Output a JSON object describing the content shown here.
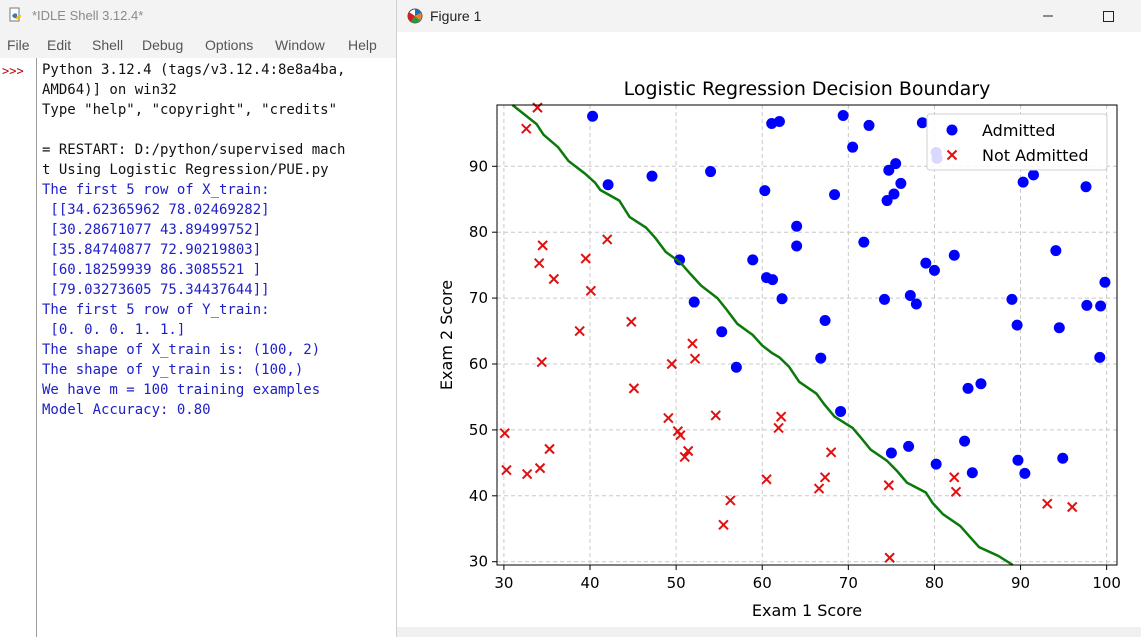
{
  "idle": {
    "title": "*IDLE Shell 3.12.4*",
    "menu": [
      "File",
      "Edit",
      "Shell",
      "Debug",
      "Options",
      "Window",
      "Help"
    ],
    "prompt": ">>>",
    "lines": [
      {
        "text": "Python 3.12.4 (tags/v3.12.4:8e8a4ba,",
        "color": "black"
      },
      {
        "text": "AMD64)] on win32",
        "color": "black"
      },
      {
        "text": "Type \"help\", \"copyright\", \"credits\"",
        "color": "black"
      },
      {
        "text": "",
        "color": "black"
      },
      {
        "text": "= RESTART: D:/python/supervised mach",
        "color": "black"
      },
      {
        "text": "t Using Logistic Regression/PUE.py",
        "color": "black"
      },
      {
        "text": "The first 5 row of X_train:",
        "color": "blue"
      },
      {
        "text": " [[34.62365962 78.02469282]",
        "color": "blue"
      },
      {
        "text": " [30.28671077 43.89499752]",
        "color": "blue"
      },
      {
        "text": " [35.84740877 72.90219803]",
        "color": "blue"
      },
      {
        "text": " [60.18259939 86.3085521 ]",
        "color": "blue"
      },
      {
        "text": " [79.03273605 75.34437644]]",
        "color": "blue"
      },
      {
        "text": "The first 5 row of Y_train:",
        "color": "blue"
      },
      {
        "text": " [0. 0. 0. 1. 1.]",
        "color": "blue"
      },
      {
        "text": "The shape of X_train is: (100, 2)",
        "color": "blue"
      },
      {
        "text": "The shape of y_train is: (100,)",
        "color": "blue"
      },
      {
        "text": "We have m = 100 training examples",
        "color": "blue"
      },
      {
        "text": "Model Accuracy: 0.80",
        "color": "blue"
      }
    ]
  },
  "figure": {
    "title": "Figure 1"
  },
  "colors": {
    "admitted": "#0000ff",
    "not_admitted": "#e01010",
    "boundary": "#0a7a0a"
  },
  "chart_data": {
    "type": "scatter",
    "title": "Logistic Regression Decision Boundary",
    "xlabel": "Exam 1 Score",
    "ylabel": "Exam 2 Score",
    "xlim": [
      29.2,
      101.2
    ],
    "ylim": [
      29.5,
      99.3
    ],
    "xticks": [
      30,
      40,
      50,
      60,
      70,
      80,
      90,
      100
    ],
    "yticks": [
      30,
      40,
      50,
      60,
      70,
      80,
      90
    ],
    "grid": true,
    "legend_position": "top-right",
    "series": [
      {
        "name": "Admitted",
        "marker": "circle",
        "points": [
          [
            40.3,
            97.6
          ],
          [
            42.1,
            87.2
          ],
          [
            47.2,
            88.5
          ],
          [
            50.4,
            75.8
          ],
          [
            52.1,
            69.4
          ],
          [
            54.0,
            89.2
          ],
          [
            55.3,
            64.9
          ],
          [
            57.0,
            59.5
          ],
          [
            58.9,
            75.8
          ],
          [
            60.3,
            86.3
          ],
          [
            60.5,
            73.1
          ],
          [
            61.1,
            96.5
          ],
          [
            61.2,
            72.8
          ],
          [
            62.0,
            96.8
          ],
          [
            62.3,
            69.9
          ],
          [
            64.0,
            80.9
          ],
          [
            64.0,
            77.9
          ],
          [
            66.8,
            60.9
          ],
          [
            67.3,
            66.6
          ],
          [
            68.4,
            85.7
          ],
          [
            69.1,
            52.8
          ],
          [
            69.4,
            97.7
          ],
          [
            70.5,
            92.9
          ],
          [
            71.8,
            78.5
          ],
          [
            72.4,
            96.2
          ],
          [
            74.2,
            69.8
          ],
          [
            74.5,
            84.8
          ],
          [
            74.7,
            89.4
          ],
          [
            75.0,
            46.5
          ],
          [
            75.3,
            85.8
          ],
          [
            75.5,
            90.4
          ],
          [
            76.1,
            87.4
          ],
          [
            77.0,
            47.5
          ],
          [
            77.2,
            70.4
          ],
          [
            77.9,
            69.1
          ],
          [
            78.6,
            96.6
          ],
          [
            79.0,
            75.3
          ],
          [
            80.0,
            74.2
          ],
          [
            80.2,
            92.1
          ],
          [
            80.3,
            91.2
          ],
          [
            80.2,
            44.8
          ],
          [
            82.3,
            76.5
          ],
          [
            83.5,
            48.3
          ],
          [
            83.9,
            56.3
          ],
          [
            84.4,
            43.5
          ],
          [
            85.4,
            57.0
          ],
          [
            89.0,
            69.8
          ],
          [
            89.6,
            65.9
          ],
          [
            89.7,
            45.4
          ],
          [
            90.3,
            87.6
          ],
          [
            90.5,
            43.4
          ],
          [
            91.5,
            88.7
          ],
          [
            94.1,
            77.2
          ],
          [
            94.5,
            65.5
          ],
          [
            94.9,
            45.7
          ],
          [
            97.6,
            86.9
          ],
          [
            97.7,
            68.9
          ],
          [
            99.2,
            61.0
          ],
          [
            99.3,
            68.8
          ],
          [
            99.8,
            72.4
          ]
        ]
      },
      {
        "name": "Not Admitted",
        "marker": "x",
        "points": [
          [
            30.1,
            49.5
          ],
          [
            30.3,
            43.9
          ],
          [
            32.6,
            95.7
          ],
          [
            32.7,
            43.3
          ],
          [
            33.9,
            98.9
          ],
          [
            34.1,
            75.3
          ],
          [
            34.2,
            44.2
          ],
          [
            34.4,
            60.3
          ],
          [
            34.5,
            78.0
          ],
          [
            35.3,
            47.1
          ],
          [
            35.8,
            72.9
          ],
          [
            38.8,
            65.0
          ],
          [
            39.5,
            76.0
          ],
          [
            40.1,
            71.1
          ],
          [
            42.0,
            78.9
          ],
          [
            44.8,
            66.4
          ],
          [
            45.1,
            56.3
          ],
          [
            49.1,
            51.8
          ],
          [
            49.5,
            60.0
          ],
          [
            50.2,
            49.8
          ],
          [
            50.5,
            49.2
          ],
          [
            51.0,
            45.9
          ],
          [
            51.4,
            46.8
          ],
          [
            51.9,
            63.1
          ],
          [
            52.2,
            60.8
          ],
          [
            54.6,
            52.2
          ],
          [
            55.5,
            35.6
          ],
          [
            56.3,
            39.3
          ],
          [
            60.5,
            42.5
          ],
          [
            61.9,
            50.3
          ],
          [
            62.2,
            52.0
          ],
          [
            66.6,
            41.1
          ],
          [
            67.3,
            42.8
          ],
          [
            68.0,
            46.6
          ],
          [
            74.7,
            41.6
          ],
          [
            74.8,
            30.6
          ],
          [
            82.3,
            42.8
          ],
          [
            82.5,
            40.6
          ],
          [
            93.1,
            38.8
          ],
          [
            96.0,
            38.3
          ]
        ]
      },
      {
        "name": "Decision Boundary",
        "marker": "line",
        "points": [
          [
            31.0,
            99.3
          ],
          [
            33.8,
            96.4
          ],
          [
            34.6,
            94.8
          ],
          [
            36.3,
            92.9
          ],
          [
            37.5,
            90.8
          ],
          [
            39.4,
            88.9
          ],
          [
            40.6,
            87.5
          ],
          [
            41.2,
            86.4
          ],
          [
            43.4,
            84.8
          ],
          [
            44.6,
            82.3
          ],
          [
            46.5,
            80.7
          ],
          [
            47.6,
            79.1
          ],
          [
            48.8,
            77.0
          ],
          [
            50.5,
            75.4
          ],
          [
            51.7,
            73.6
          ],
          [
            52.9,
            71.9
          ],
          [
            54.8,
            70.0
          ],
          [
            55.9,
            68.2
          ],
          [
            57.1,
            66.1
          ],
          [
            58.9,
            64.4
          ],
          [
            60.0,
            62.8
          ],
          [
            61.1,
            61.7
          ],
          [
            62.0,
            61.0
          ],
          [
            63.1,
            59.6
          ],
          [
            64.3,
            57.3
          ],
          [
            66.3,
            55.5
          ],
          [
            67.2,
            53.9
          ],
          [
            68.4,
            52.0
          ],
          [
            70.5,
            50.3
          ],
          [
            71.4,
            48.9
          ],
          [
            72.6,
            47.0
          ],
          [
            74.5,
            45.3
          ],
          [
            75.7,
            43.7
          ],
          [
            76.8,
            42.0
          ],
          [
            79.0,
            40.5
          ],
          [
            79.8,
            38.9
          ],
          [
            81.0,
            37.2
          ],
          [
            83.0,
            35.4
          ],
          [
            84.1,
            33.8
          ],
          [
            85.2,
            32.2
          ],
          [
            87.4,
            30.9
          ],
          [
            89.1,
            29.5
          ]
        ]
      }
    ]
  }
}
